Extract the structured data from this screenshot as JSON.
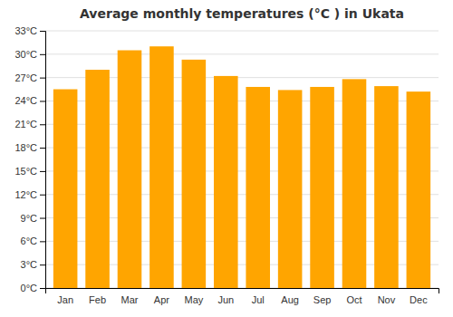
{
  "chart_data": {
    "type": "bar",
    "title": "Average monthly temperatures (°C ) in Ukata",
    "categories": [
      "Jan",
      "Feb",
      "Mar",
      "Apr",
      "May",
      "Jun",
      "Jul",
      "Aug",
      "Sep",
      "Oct",
      "Nov",
      "Dec"
    ],
    "values": [
      25.5,
      28.0,
      30.5,
      31.0,
      29.3,
      27.2,
      25.8,
      25.4,
      25.8,
      26.8,
      25.9,
      25.2
    ],
    "color": "#FFA500",
    "ylim": [
      0,
      33
    ],
    "yticks": [
      {
        "value": 0,
        "label": "0°C"
      },
      {
        "value": 3,
        "label": "3°C"
      },
      {
        "value": 6,
        "label": "6°C"
      },
      {
        "value": 9,
        "label": "9°C"
      },
      {
        "value": 12,
        "label": "12°C"
      },
      {
        "value": 15,
        "label": "15°C"
      },
      {
        "value": 18,
        "label": "18°C"
      },
      {
        "value": 21,
        "label": "21°C"
      },
      {
        "value": 24,
        "label": "24°C"
      },
      {
        "value": 27,
        "label": "27°C"
      },
      {
        "value": 30,
        "label": "30°C"
      },
      {
        "value": 33,
        "label": "33°C"
      }
    ],
    "grid": true
  }
}
